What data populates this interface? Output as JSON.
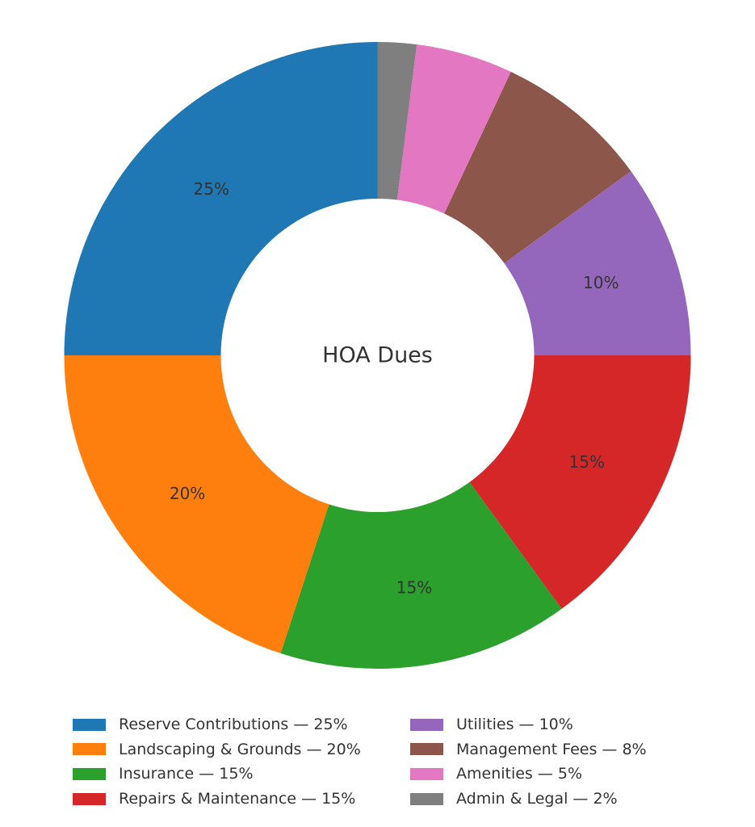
{
  "chart_data": {
    "type": "pie",
    "style": "donut",
    "center_label": "HOA Dues",
    "slices": [
      {
        "label": "Reserve Contributions",
        "value": 25,
        "color": "#1f77b4",
        "pct_label": "25%",
        "legend": "Reserve Contributions — 25%"
      },
      {
        "label": "Landscaping & Grounds",
        "value": 20,
        "color": "#ff7f0e",
        "pct_label": "20%",
        "legend": "Landscaping & Grounds — 20%"
      },
      {
        "label": "Insurance",
        "value": 15,
        "color": "#2ca02c",
        "pct_label": "15%",
        "legend": "Insurance — 15%"
      },
      {
        "label": "Repairs & Maintenance",
        "value": 15,
        "color": "#d62728",
        "pct_label": "15%",
        "legend": "Repairs & Maintenance — 15%"
      },
      {
        "label": "Utilities",
        "value": 10,
        "color": "#9467bd",
        "pct_label": "10%",
        "legend": "Utilities — 10%"
      },
      {
        "label": "Management Fees",
        "value": 8,
        "color": "#8c564b",
        "pct_label": "",
        "legend": "Management Fees — 8%"
      },
      {
        "label": "Amenities",
        "value": 5,
        "color": "#e377c2",
        "pct_label": "",
        "legend": "Amenities — 5%"
      },
      {
        "label": "Admin & Legal",
        "value": 2,
        "color": "#7f7f7f",
        "pct_label": "",
        "legend": "Admin & Legal — 2%"
      }
    ],
    "start_angle_deg": 90,
    "direction": "counterclockwise",
    "legend_position": "bottom",
    "legend_columns": 2
  }
}
